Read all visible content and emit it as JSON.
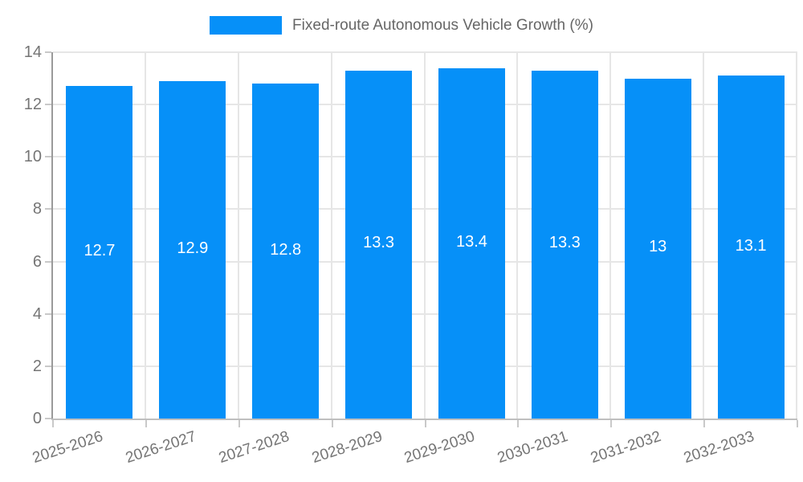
{
  "colors": {
    "bar": "#0690F8",
    "grid": "#E6E6E6",
    "y_axis_line": "#9A9A9A",
    "x_axis_line": "#BFBFBF",
    "tick_mark": "#C9C9C9",
    "tick_text": "#757575",
    "legend_text": "#666666",
    "value_label_text": "#FFFFFF",
    "background": "#FFFFFF"
  },
  "chart_data": {
    "type": "bar",
    "title": "Fixed-route Autonomous Vehicle Growth (%)",
    "categories": [
      "2025-2026",
      "2026-2027",
      "2027-2028",
      "2028-2029",
      "2029-2030",
      "2030-2031",
      "2031-2032",
      "2032-2033"
    ],
    "values": [
      12.7,
      12.9,
      12.8,
      13.3,
      13.4,
      13.3,
      13,
      13.1
    ],
    "value_labels": [
      "12.7",
      "12.9",
      "12.8",
      "13.3",
      "13.4",
      "13.3",
      "13",
      "13.1"
    ],
    "xlabel": "",
    "ylabel": "",
    "ylim": [
      0,
      14
    ],
    "yticks": [
      0,
      2,
      4,
      6,
      8,
      10,
      12,
      14
    ],
    "grid": true,
    "legend_position": "top",
    "value_label_position": "bar-center",
    "x_label_rotation_deg": -18
  }
}
